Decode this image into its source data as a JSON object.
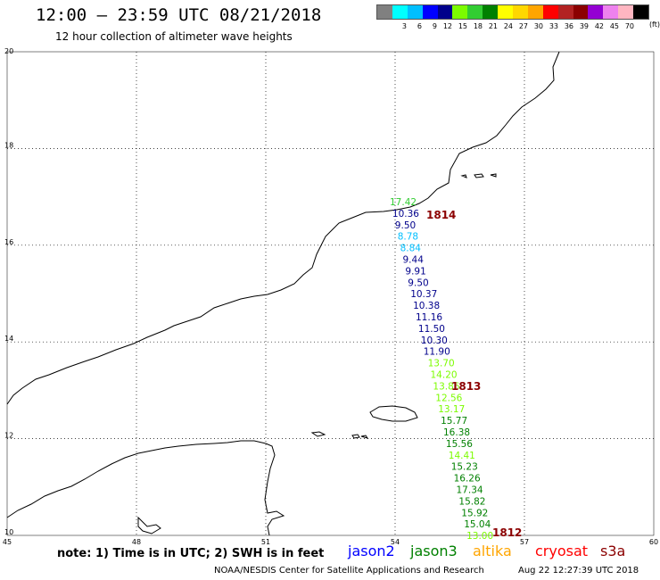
{
  "header": {
    "title": "12:00 — 23:59 UTC 08/21/2018",
    "subtitle": "12 hour collection of altimeter wave heights"
  },
  "legend": {
    "colors": [
      "#808080",
      "#00ffff",
      "#00bfff",
      "#0000ff",
      "#00008b",
      "#7cfc00",
      "#32cd32",
      "#008000",
      "#ffff00",
      "#ffd700",
      "#ffa500",
      "#ff0000",
      "#b22222",
      "#8b0000",
      "#9400d3",
      "#ee82ee",
      "#ffb6c1",
      "#000000"
    ],
    "labels": [
      "3",
      "6",
      "9",
      "12",
      "15",
      "18",
      "21",
      "24",
      "27",
      "30",
      "33",
      "36",
      "39",
      "42",
      "45",
      "70"
    ],
    "unit": "(ft)"
  },
  "axes": {
    "lat_ticks": [
      "10",
      "12",
      "14",
      "16",
      "18",
      "20"
    ],
    "lon_ticks": [
      "45",
      "48",
      "51",
      "54",
      "57",
      "60"
    ]
  },
  "observations": [
    {
      "value": "17.42",
      "color": "#32cd32"
    },
    {
      "value": "10.36",
      "color": "#00008b"
    },
    {
      "value": "9.50",
      "color": "#00008b"
    },
    {
      "value": "8.78",
      "color": "#00bfff"
    },
    {
      "value": "8.84",
      "color": "#00bfff"
    },
    {
      "value": "9.44",
      "color": "#00008b"
    },
    {
      "value": "9.91",
      "color": "#00008b"
    },
    {
      "value": "9.50",
      "color": "#00008b"
    },
    {
      "value": "10.37",
      "color": "#00008b"
    },
    {
      "value": "10.38",
      "color": "#00008b"
    },
    {
      "value": "11.16",
      "color": "#00008b"
    },
    {
      "value": "11.50",
      "color": "#00008b"
    },
    {
      "value": "10.30",
      "color": "#00008b"
    },
    {
      "value": "11.90",
      "color": "#00008b"
    },
    {
      "value": "13.70",
      "color": "#7cfc00"
    },
    {
      "value": "14.20",
      "color": "#7cfc00"
    },
    {
      "value": "13.86",
      "color": "#7cfc00"
    },
    {
      "value": "12.56",
      "color": "#7cfc00"
    },
    {
      "value": "13.17",
      "color": "#7cfc00"
    },
    {
      "value": "15.77",
      "color": "#008000"
    },
    {
      "value": "16.38",
      "color": "#008000"
    },
    {
      "value": "15.56",
      "color": "#008000"
    },
    {
      "value": "14.41",
      "color": "#7cfc00"
    },
    {
      "value": "15.23",
      "color": "#008000"
    },
    {
      "value": "16.26",
      "color": "#008000"
    },
    {
      "value": "17.34",
      "color": "#008000"
    },
    {
      "value": "15.82",
      "color": "#008000"
    },
    {
      "value": "15.92",
      "color": "#008000"
    },
    {
      "value": "15.04",
      "color": "#008000"
    },
    {
      "value": "13.00",
      "color": "#7cfc00"
    }
  ],
  "time_labels": [
    "1814",
    "1813",
    "1812"
  ],
  "time_label_color": "#8b0000",
  "footer": {
    "note": "note:  1) Time is in UTC;  2) SWH is in feet",
    "satellites": [
      {
        "name": "jason2",
        "color": "#0000ff"
      },
      {
        "name": "jason3",
        "color": "#008000"
      },
      {
        "name": "altika",
        "color": "#ffa500"
      },
      {
        "name": "cryosat",
        "color": "#ff0000"
      },
      {
        "name": "s3a",
        "color": "#8b0000"
      }
    ],
    "credit": "NOAA/NESDIS Center for Satellite Applications and Research",
    "timestamp": "Aug 22 12:27:39 UTC 2018"
  }
}
